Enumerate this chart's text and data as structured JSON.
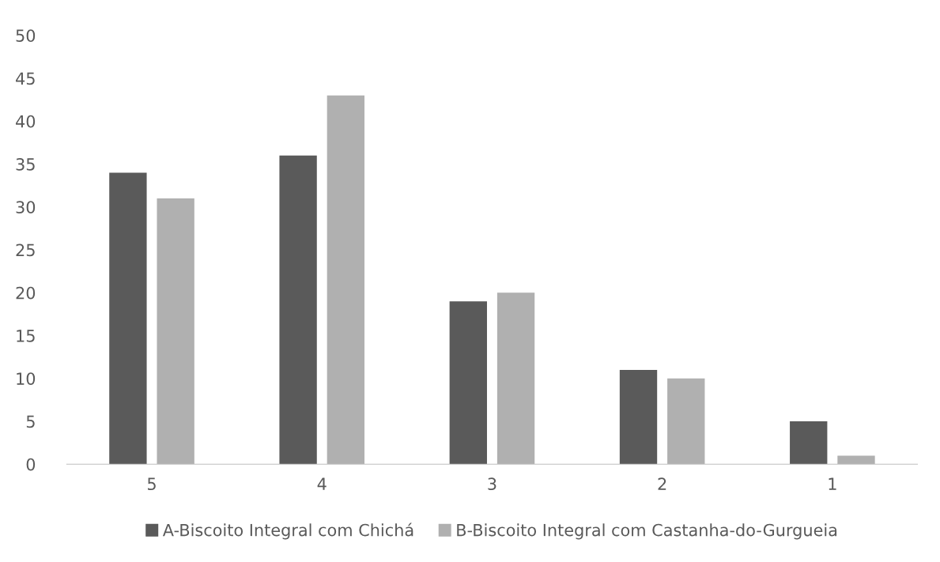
{
  "chart_data": {
    "type": "bar",
    "categories": [
      "5",
      "4",
      "3",
      "2",
      "1"
    ],
    "series": [
      {
        "name": "A-Biscoito Integral com Chichá",
        "color": "#5a5a5a",
        "values": [
          34,
          36,
          19,
          11,
          5
        ]
      },
      {
        "name": "B-Biscoito Integral com Castanha-do-Gurgueia",
        "color": "#b0b0b0",
        "values": [
          31,
          43,
          20,
          10,
          1
        ]
      }
    ],
    "ylim": [
      0,
      50
    ],
    "yticks": [
      0,
      5,
      10,
      15,
      20,
      25,
      30,
      35,
      40,
      45,
      50
    ],
    "grid": false,
    "legend": "bottom"
  }
}
